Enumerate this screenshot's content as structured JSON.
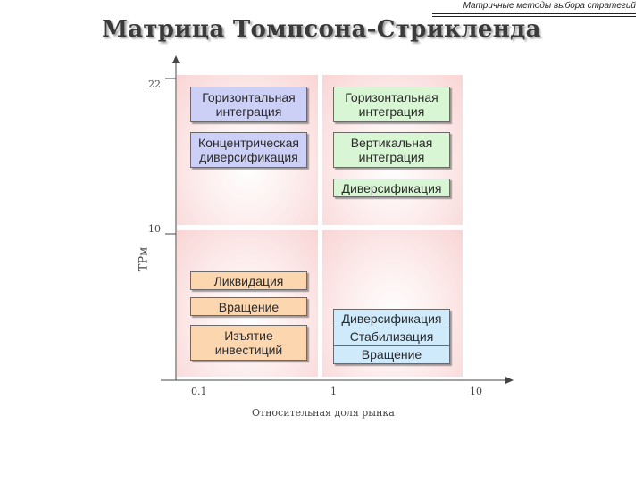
{
  "header": {
    "caption": "Матричные методы выбора стратегий",
    "title": "Матрица Томпсона-Стрикленда"
  },
  "axes": {
    "y_label": "ТРм",
    "y_ticks": [
      "22",
      "10"
    ],
    "x_label": "Относительная доля рынка",
    "x_ticks": [
      "0.1",
      "1",
      "10"
    ]
  },
  "quadrants": {
    "top_left": [
      "Горизонтальная интеграция",
      "Концентрическая диверсификация"
    ],
    "top_right": [
      "Горизонтальная интеграция",
      "Вертикальная интеграция",
      "Диверсификация"
    ],
    "bottom_left": [
      "Ликвидация",
      "Вращение",
      "Изъятие инвестиций"
    ],
    "bottom_right": [
      "Диверсификация",
      "Стабилизация",
      "Вращение"
    ]
  },
  "colors": {
    "top_left_box": "#cdd0f6",
    "top_right_box": "#d8f5d4",
    "bottom_left_box": "#fcd6ae",
    "bottom_right_box": "#cfeafb",
    "quadrant_edge": "#f9d5d5"
  }
}
